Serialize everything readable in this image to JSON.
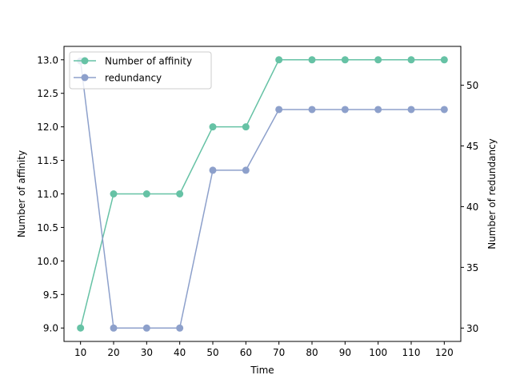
{
  "chart_data": {
    "type": "line",
    "xlabel": "Time",
    "ylabel_left": "Number of affinity",
    "ylabel_right": "Number of redundancy",
    "x": [
      10,
      20,
      30,
      40,
      50,
      60,
      70,
      80,
      90,
      100,
      110,
      120
    ],
    "xlim": [
      5,
      125
    ],
    "ylim_left": [
      8.8,
      13.2
    ],
    "ylim_right": [
      28.9,
      53.2
    ],
    "xticks": [
      "10",
      "20",
      "30",
      "40",
      "50",
      "60",
      "70",
      "80",
      "90",
      "100",
      "110",
      "120"
    ],
    "yticks_left": [
      "9.0",
      "9.5",
      "10.0",
      "10.5",
      "11.0",
      "11.5",
      "12.0",
      "12.5",
      "13.0"
    ],
    "yticks_right": [
      "30",
      "35",
      "40",
      "45",
      "50"
    ],
    "grid": false,
    "legend_placement": "upper-left",
    "series": [
      {
        "name": "Number of affinity",
        "axis": "left",
        "color": "#66c2a5",
        "values": [
          9,
          11,
          11,
          11,
          12,
          12,
          13,
          13,
          13,
          13,
          13,
          13
        ]
      },
      {
        "name": "redundancy",
        "axis": "right",
        "color": "#8da0cb",
        "values": [
          52,
          30,
          30,
          30,
          43,
          43,
          48,
          48,
          48,
          48,
          48,
          48
        ]
      }
    ]
  }
}
